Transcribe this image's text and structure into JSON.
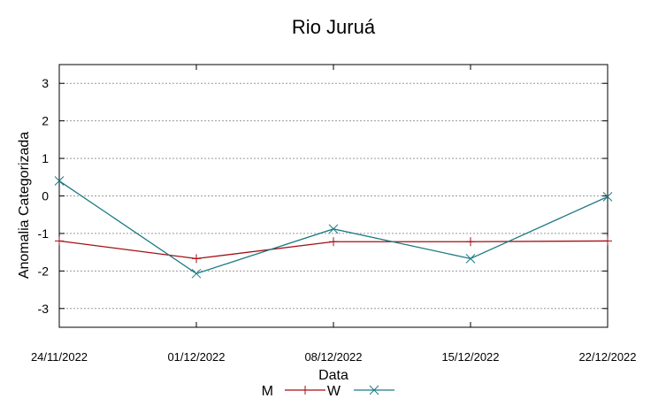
{
  "chart_data": {
    "type": "line",
    "title": "Rio Juruá",
    "xlabel": "Data",
    "ylabel": "Anomalia Categorizada",
    "x": [
      "24/11/2022",
      "01/12/2022",
      "08/12/2022",
      "15/12/2022",
      "22/12/2022"
    ],
    "yticks": [
      3,
      2,
      1,
      0,
      -1,
      -2,
      -3
    ],
    "ytick_labels": [
      "3",
      "2",
      "1",
      "0",
      "-1",
      "-2",
      "-3"
    ],
    "ylim": [
      -3.5,
      3.5
    ],
    "grid": true,
    "legend_position": "bottom",
    "series": [
      {
        "name": "M",
        "color": "#a50f15",
        "marker": "plus",
        "values": [
          -1.2,
          -1.67,
          -1.22,
          -1.22,
          -1.2
        ]
      },
      {
        "name": "W",
        "color": "#1b7a83",
        "marker": "x",
        "values": [
          0.4,
          -2.07,
          -0.88,
          -1.67,
          -0.02
        ]
      }
    ]
  }
}
